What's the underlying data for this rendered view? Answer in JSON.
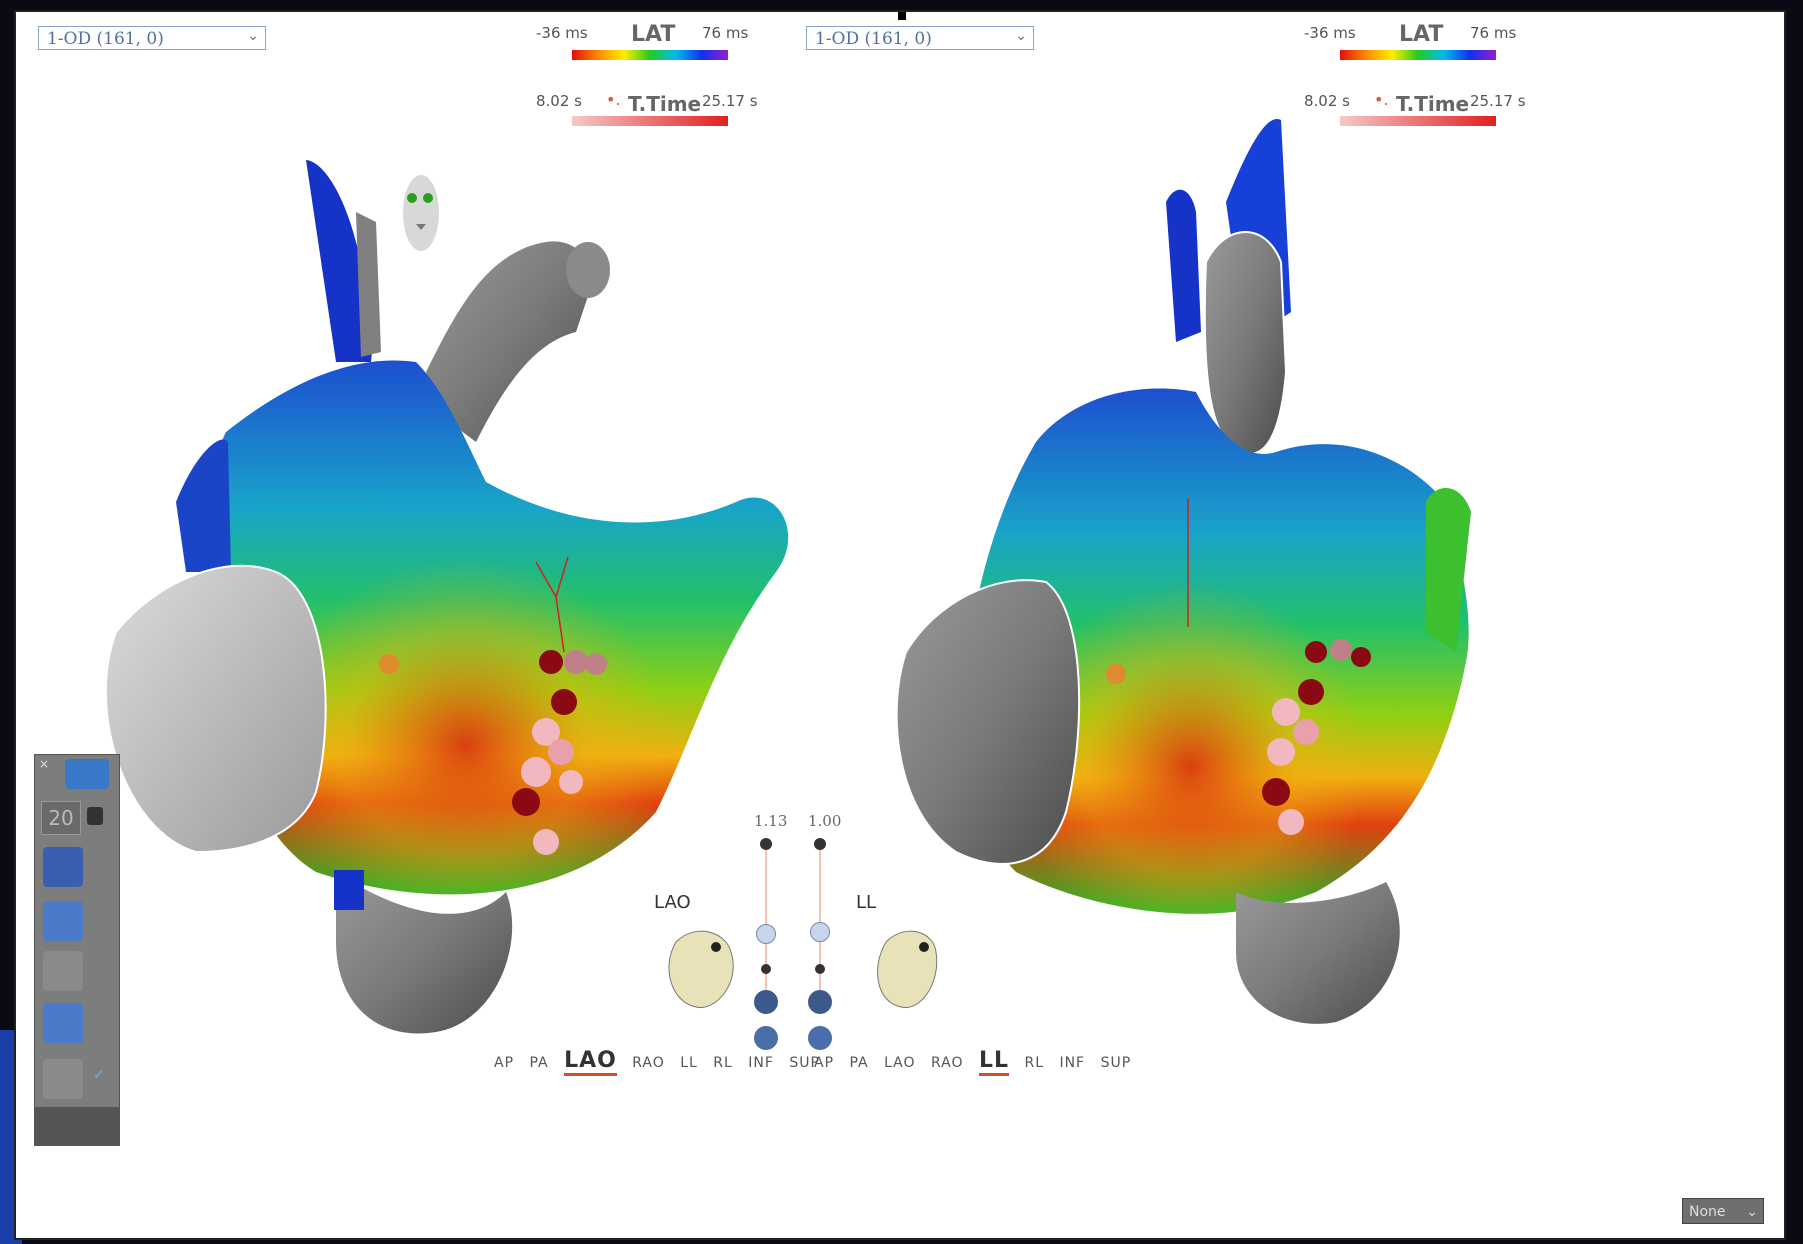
{
  "left_view": {
    "map_select": "1-OD (161, 0)",
    "lat": {
      "min": "-36 ms",
      "title": "LAT",
      "max": "76 ms"
    },
    "ttime": {
      "min": "8.02 s",
      "title": "T.Time",
      "max": "25.17 s"
    },
    "orientation": "LAO",
    "views": [
      "AP",
      "PA",
      "LAO",
      "RAO",
      "LL",
      "RL",
      "INF",
      "SUP"
    ],
    "selected_view": "LAO"
  },
  "right_view": {
    "map_select": "1-OD (161, 0)",
    "lat": {
      "min": "-36 ms",
      "title": "LAT",
      "max": "76 ms"
    },
    "ttime": {
      "min": "8.02 s",
      "title": "T.Time",
      "max": "25.17 s"
    },
    "orientation": "LL",
    "views": [
      "AP",
      "PA",
      "LAO",
      "RAO",
      "LL",
      "RL",
      "INF",
      "SUP"
    ],
    "selected_view": "LL"
  },
  "sliders": [
    {
      "value": "1.13"
    },
    {
      "value": "1.00"
    }
  ],
  "toolbox": {
    "count": "20"
  },
  "bottom_select": "None",
  "colors": {
    "lat_red": "#e01010",
    "lat_purple": "#9b1ccf",
    "selection_underline": "#d0502a"
  }
}
